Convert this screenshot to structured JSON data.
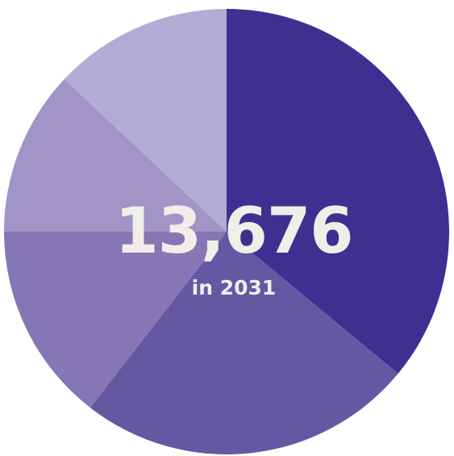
{
  "chart_data": {
    "type": "pie",
    "title": "",
    "categories": [
      "",
      "",
      "",
      "",
      ""
    ],
    "values": [
      36,
      24.5,
      14.5,
      12,
      13
    ],
    "colors": [
      "#3f2f91",
      "#6657a3",
      "#8577b5",
      "#a195c7",
      "#b3abd5"
    ],
    "center_label": {
      "value": "13,676",
      "subtitle": "in 2031"
    },
    "label_color": "#efeee9",
    "start_angle_deg": 0,
    "direction": "clockwise"
  }
}
